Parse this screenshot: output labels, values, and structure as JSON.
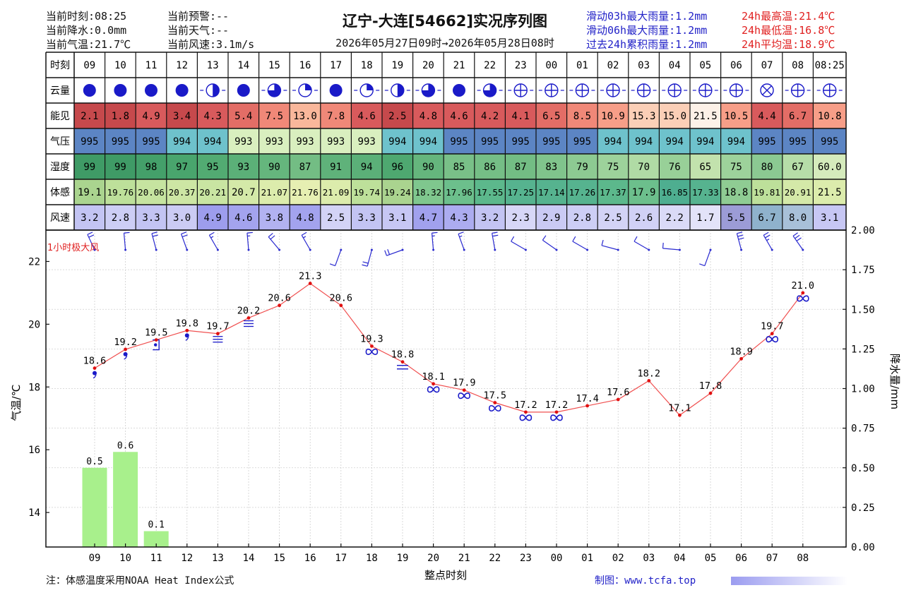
{
  "header": {
    "title": "辽宁-大连[54662]实况序列图",
    "period": "2026年05月27日09时→2026年05月28日08时",
    "left": [
      "当前时刻:08:25",
      "当前降水:0.0mm",
      "当前气温:21.7℃"
    ],
    "mid": [
      "当前预警:--",
      "当前天气:--",
      "当前风速:3.1m/s"
    ],
    "rain": [
      "滑动03h最大雨量:1.2mm",
      "滑动06h最大雨量:1.2mm",
      "过去24h累积雨量:1.2mm"
    ],
    "temp_stats": [
      "24h最高温:21.4℃",
      "24h最低温:16.8℃",
      "24h平均温:18.9℃"
    ]
  },
  "table": {
    "row_labels": [
      "时刻",
      "云量",
      "能见",
      "气压",
      "湿度",
      "体感",
      "风速"
    ],
    "times": [
      "09",
      "10",
      "11",
      "12",
      "13",
      "14",
      "15",
      "16",
      "17",
      "18",
      "19",
      "20",
      "21",
      "22",
      "23",
      "00",
      "01",
      "02",
      "03",
      "04",
      "05",
      "06",
      "07",
      "08",
      "08:25"
    ],
    "cloud_icons": [
      "overcast-icon",
      "overcast-icon",
      "overcast-icon",
      "overcast-icon",
      "cloud-half-icon",
      "overcast-icon",
      "cloud-3q-icon",
      "cloud-1q-icon",
      "overcast-icon",
      "cloud-1q-icon",
      "cloud-half-icon",
      "cloud-3q-icon",
      "overcast-icon",
      "cloud-3q-icon",
      "clear-icon",
      "clear-icon",
      "clear-icon",
      "clear-icon",
      "clear-icon",
      "clear-icon",
      "clear-icon",
      "clear-icon",
      "obscured-icon",
      "clear-icon",
      "clear-icon"
    ],
    "visibility": [
      "2.1",
      "1.8",
      "4.9",
      "3.4",
      "4.3",
      "5.4",
      "7.5",
      "13.0",
      "7.8",
      "4.6",
      "2.5",
      "4.8",
      "4.6",
      "4.2",
      "4.1",
      "6.5",
      "8.5",
      "10.9",
      "15.3",
      "15.0",
      "21.5",
      "10.5",
      "4.4",
      "6.7",
      "10.8"
    ],
    "pressure": [
      "995",
      "995",
      "995",
      "994",
      "994",
      "993",
      "993",
      "993",
      "993",
      "993",
      "994",
      "994",
      "995",
      "995",
      "995",
      "995",
      "995",
      "994",
      "994",
      "994",
      "994",
      "994",
      "995",
      "995",
      "995"
    ],
    "humidity": [
      "99",
      "99",
      "98",
      "97",
      "95",
      "93",
      "90",
      "87",
      "91",
      "94",
      "96",
      "90",
      "85",
      "86",
      "87",
      "83",
      "79",
      "75",
      "70",
      "76",
      "65",
      "75",
      "80",
      "67",
      "60.0"
    ],
    "feels_like": [
      "19.1",
      "19.76",
      "20.06",
      "20.37",
      "20.21",
      "20.7",
      "21.07",
      "21.76",
      "21.09",
      "19.74",
      "19.24",
      "18.32",
      "17.96",
      "17.55",
      "17.25",
      "17.14",
      "17.26",
      "17.37",
      "17.9",
      "16.85",
      "17.33",
      "18.8",
      "19.81",
      "20.91",
      "21.5"
    ],
    "wind_speed": [
      "3.2",
      "2.8",
      "3.3",
      "3.0",
      "4.9",
      "4.6",
      "3.8",
      "4.8",
      "2.5",
      "3.3",
      "3.1",
      "4.7",
      "4.3",
      "3.2",
      "2.3",
      "2.9",
      "2.8",
      "2.5",
      "2.6",
      "2.2",
      "1.7",
      "5.5",
      "6.7",
      "8.0",
      "3.1"
    ],
    "colors": {
      "visibility": [
        "#c6494c",
        "#c6494c",
        "#d85a5c",
        "#c6494c",
        "#d85a5c",
        "#e36d66",
        "#f08878",
        "#f9b79b",
        "#f08878",
        "#d85a5c",
        "#c6494c",
        "#d85a5c",
        "#d85a5c",
        "#d85a5c",
        "#d85a5c",
        "#e36d66",
        "#f08878",
        "#f79e88",
        "#fbcfb7",
        "#fbcfb7",
        "#fdf1e8",
        "#f79e88",
        "#d85a5c",
        "#e36d66",
        "#f79e88"
      ],
      "pressure": [
        "#5c85c4",
        "#5c85c4",
        "#5c85c4",
        "#6ec2cc",
        "#6ec2cc",
        "#d9efbf",
        "#d9efbf",
        "#d9efbf",
        "#d9efbf",
        "#d9efbf",
        "#6ec2cc",
        "#6ec2cc",
        "#5c85c4",
        "#5c85c4",
        "#5c85c4",
        "#5c85c4",
        "#5c85c4",
        "#6ec2cc",
        "#6ec2cc",
        "#6ec2cc",
        "#6ec2cc",
        "#6ec2cc",
        "#5c85c4",
        "#5c85c4",
        "#5c85c4"
      ],
      "humidity": [
        "#3f9b66",
        "#3f9b66",
        "#44a06a",
        "#49a56d",
        "#52ab72",
        "#5bb078",
        "#65b67d",
        "#73bd84",
        "#5fb27a",
        "#5bb078",
        "#4ea870",
        "#65b67d",
        "#79c088",
        "#75be86",
        "#73bd84",
        "#80c48c",
        "#8dca92",
        "#9dd29b",
        "#b0dba5",
        "#98d098",
        "#c2e2ad",
        "#9dd29b",
        "#8bc992",
        "#b6dda8",
        "#d5ebbc"
      ],
      "feels_like": [
        "#aad48f",
        "#bde09a",
        "#c6e4a0",
        "#cde6a4",
        "#c9e5a2",
        "#d4e9a8",
        "#dcecac",
        "#e6efb2",
        "#dcecac",
        "#bde09a",
        "#aad48f",
        "#7fc78e",
        "#6cbf8c",
        "#5cb88c",
        "#56b38f",
        "#56b38f",
        "#56b38f",
        "#5cb88c",
        "#6cbf8c",
        "#4eae90",
        "#56b38f",
        "#8fcc93",
        "#bde09a",
        "#d4e9a8",
        "#dcecac"
      ],
      "wind_speed": [
        "#c3c4f3",
        "#cdcef5",
        "#c3c4f3",
        "#cbcbf4",
        "#9d9ded",
        "#a3a3ee",
        "#b2b2f1",
        "#a3a3ee",
        "#d3d3f6",
        "#c3c4f3",
        "#c7c7f4",
        "#a1a1ee",
        "#acacf0",
        "#c3c4f3",
        "#d7d7f7",
        "#cacaf4",
        "#cdcef5",
        "#d3d3f6",
        "#d1d1f6",
        "#dadaf7",
        "#e3e3f9",
        "#9c9cd6",
        "#8fb2cc",
        "#a8c0d8",
        "#c7c7f4"
      ]
    }
  },
  "chart_data": {
    "type": "line",
    "x": [
      "09",
      "10",
      "11",
      "12",
      "13",
      "14",
      "15",
      "16",
      "17",
      "18",
      "19",
      "20",
      "21",
      "22",
      "23",
      "00",
      "01",
      "02",
      "03",
      "04",
      "05",
      "06",
      "07",
      "08"
    ],
    "series": [
      {
        "values": [
          18.6,
          19.2,
          19.5,
          19.8,
          19.7,
          20.2,
          20.6,
          21.3,
          20.6,
          19.3,
          18.8,
          18.1,
          17.9,
          17.5,
          17.2,
          17.2,
          17.4,
          17.6,
          18.2,
          17.1,
          17.8,
          18.9,
          19.7,
          21.0
        ]
      }
    ],
    "precipitation": {
      "categories": [
        "09",
        "10",
        "11"
      ],
      "values": [
        0.5,
        0.6,
        0.1
      ]
    },
    "weather_symbols": [
      "drizzle",
      "drizzle",
      "rain-shower",
      "drizzle",
      "fog",
      "fog",
      "",
      "",
      "",
      "haze",
      "mist",
      "haze",
      "haze",
      "haze",
      "haze",
      "haze",
      "",
      "",
      "",
      "",
      "",
      "",
      "haze",
      "haze"
    ],
    "wind_dir_deg": [
      335,
      355,
      345,
      340,
      330,
      355,
      320,
      330,
      200,
      195,
      250,
      355,
      340,
      350,
      300,
      305,
      300,
      285,
      300,
      275,
      200,
      345,
      330,
      325
    ],
    "xlabel": "整点时刻",
    "ylabel": "气温/℃",
    "y2label": "降水量/mm",
    "ylim": [
      12.9,
      23.0
    ],
    "y2lim": [
      0,
      2.0
    ],
    "yticks": [
      14,
      16,
      18,
      20,
      22
    ],
    "y2ticks": [
      "0.00",
      "0.25",
      "0.50",
      "0.75",
      "1.00",
      "1.25",
      "1.50",
      "1.75",
      "2.00"
    ],
    "gust_label": "1小时极大风",
    "grid": true
  },
  "footer": {
    "note": "注：体感温度采用NOAA Heat Index公式",
    "credit": "制图：www.tcfa.top"
  },
  "style": {
    "line_color": "#f05050",
    "bar_color": "#a8f08c",
    "symbol_color": "#1a1ac8",
    "rain_text": "#2323c8",
    "temp_text": "#e02020"
  }
}
